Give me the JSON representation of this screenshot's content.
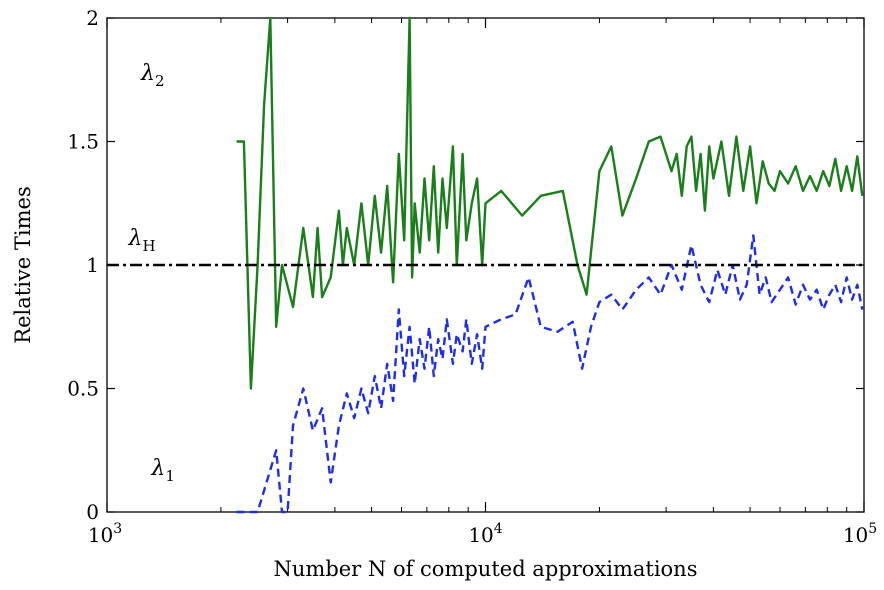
{
  "chart_data": {
    "type": "line",
    "xscale": "log",
    "xlim": [
      1000,
      100000
    ],
    "ylim": [
      0,
      2
    ],
    "xlabel": "Number N of computed approximations",
    "ylabel": "Relative Times",
    "xticks": [
      {
        "value": 1000,
        "label": "10",
        "exp": "3"
      },
      {
        "value": 10000,
        "label": "10",
        "exp": "4"
      },
      {
        "value": 100000,
        "label": "10",
        "exp": "5"
      }
    ],
    "yticks": [
      {
        "value": 0,
        "label": "0"
      },
      {
        "value": 0.5,
        "label": "0.5"
      },
      {
        "value": 1,
        "label": "1"
      },
      {
        "value": 1.5,
        "label": "1.5"
      },
      {
        "value": 2,
        "label": "2"
      }
    ],
    "grid": false,
    "series": [
      {
        "name": "λ2",
        "color": "#1a7f1a",
        "dash": "solid",
        "label_at": [
          1230,
          1.75
        ],
        "x": [
          2200,
          2300,
          2400,
          2500,
          2600,
          2700,
          2800,
          2900,
          3100,
          3300,
          3500,
          3600,
          3700,
          3900,
          4100,
          4200,
          4300,
          4500,
          4700,
          4900,
          5100,
          5300,
          5500,
          5700,
          5900,
          6100,
          6300,
          6400,
          6500,
          6700,
          6900,
          7100,
          7300,
          7500,
          7700,
          7900,
          8200,
          8400,
          8700,
          8900,
          9200,
          9500,
          9800,
          10000,
          11000,
          12500,
          14000,
          16000,
          17500,
          18500,
          20000,
          21500,
          23000,
          25000,
          27000,
          29000,
          31000,
          32000,
          33000,
          34000,
          35000,
          36000,
          37000,
          38000,
          39000,
          40000,
          42000,
          44000,
          46000,
          48000,
          50000,
          52000,
          54000,
          56000,
          58000,
          60000,
          63000,
          66000,
          69000,
          72000,
          75000,
          78000,
          81000,
          84000,
          87000,
          90000,
          93000,
          96000,
          99000
        ],
        "y": [
          1.5,
          1.5,
          0.5,
          1.0,
          1.65,
          2.0,
          0.75,
          1.0,
          0.83,
          1.15,
          0.87,
          1.15,
          0.87,
          0.95,
          1.22,
          1.0,
          1.15,
          1.0,
          1.25,
          1.0,
          1.28,
          1.05,
          1.32,
          0.93,
          1.45,
          1.1,
          2.0,
          0.95,
          1.25,
          1.05,
          1.35,
          1.1,
          1.4,
          1.05,
          1.35,
          1.15,
          1.48,
          1.0,
          1.45,
          1.1,
          1.25,
          1.35,
          1.0,
          1.25,
          1.3,
          1.2,
          1.28,
          1.3,
          1.0,
          0.88,
          1.38,
          1.48,
          1.2,
          1.35,
          1.5,
          1.52,
          1.38,
          1.45,
          1.28,
          1.48,
          1.52,
          1.3,
          1.45,
          1.22,
          1.48,
          1.35,
          1.5,
          1.28,
          1.52,
          1.3,
          1.48,
          1.25,
          1.42,
          1.33,
          1.3,
          1.38,
          1.33,
          1.4,
          1.3,
          1.36,
          1.3,
          1.38,
          1.32,
          1.43,
          1.3,
          1.4,
          1.3,
          1.44,
          1.28
        ]
      },
      {
        "name": "λ1",
        "color": "#1f2ee6",
        "dash": "dashed",
        "label_at": [
          1310,
          0.15
        ],
        "x": [
          2200,
          2500,
          2800,
          2900,
          3000,
          3100,
          3300,
          3500,
          3700,
          3900,
          4100,
          4300,
          4500,
          4700,
          4900,
          5100,
          5300,
          5500,
          5700,
          5900,
          6100,
          6300,
          6500,
          6700,
          6900,
          7100,
          7300,
          7500,
          7700,
          7900,
          8200,
          8400,
          8700,
          8900,
          9200,
          9500,
          9800,
          10000,
          11000,
          12000,
          13000,
          14000,
          15500,
          17000,
          18000,
          19000,
          20000,
          21500,
          23000,
          25000,
          27000,
          29000,
          31000,
          33000,
          35000,
          37000,
          39000,
          41000,
          43000,
          45000,
          47000,
          49000,
          51000,
          53000,
          55000,
          57000,
          60000,
          63000,
          66000,
          69000,
          72000,
          75000,
          78000,
          81000,
          84000,
          87000,
          90000,
          93000,
          96000,
          99000
        ],
        "y": [
          0.0,
          0.0,
          0.25,
          0.0,
          0.0,
          0.35,
          0.5,
          0.33,
          0.42,
          0.12,
          0.35,
          0.48,
          0.38,
          0.5,
          0.4,
          0.55,
          0.42,
          0.6,
          0.45,
          0.82,
          0.55,
          0.75,
          0.52,
          0.7,
          0.58,
          0.75,
          0.55,
          0.7,
          0.62,
          0.78,
          0.6,
          0.72,
          0.65,
          0.78,
          0.6,
          0.72,
          0.58,
          0.75,
          0.78,
          0.8,
          0.95,
          0.75,
          0.73,
          0.77,
          0.58,
          0.75,
          0.85,
          0.88,
          0.82,
          0.9,
          0.95,
          0.88,
          1.0,
          0.9,
          1.08,
          0.92,
          0.85,
          0.98,
          0.88,
          1.0,
          0.86,
          0.92,
          1.12,
          0.88,
          0.95,
          0.85,
          0.9,
          0.95,
          0.84,
          0.92,
          0.86,
          0.9,
          0.82,
          0.88,
          0.92,
          0.85,
          0.95,
          0.86,
          0.92,
          0.82
        ]
      },
      {
        "name": "λH",
        "color": "#000000",
        "dash": "dashdot",
        "label_at": [
          1140,
          1.08
        ],
        "x": [
          1000,
          100000
        ],
        "y": [
          1,
          1
        ]
      }
    ]
  }
}
